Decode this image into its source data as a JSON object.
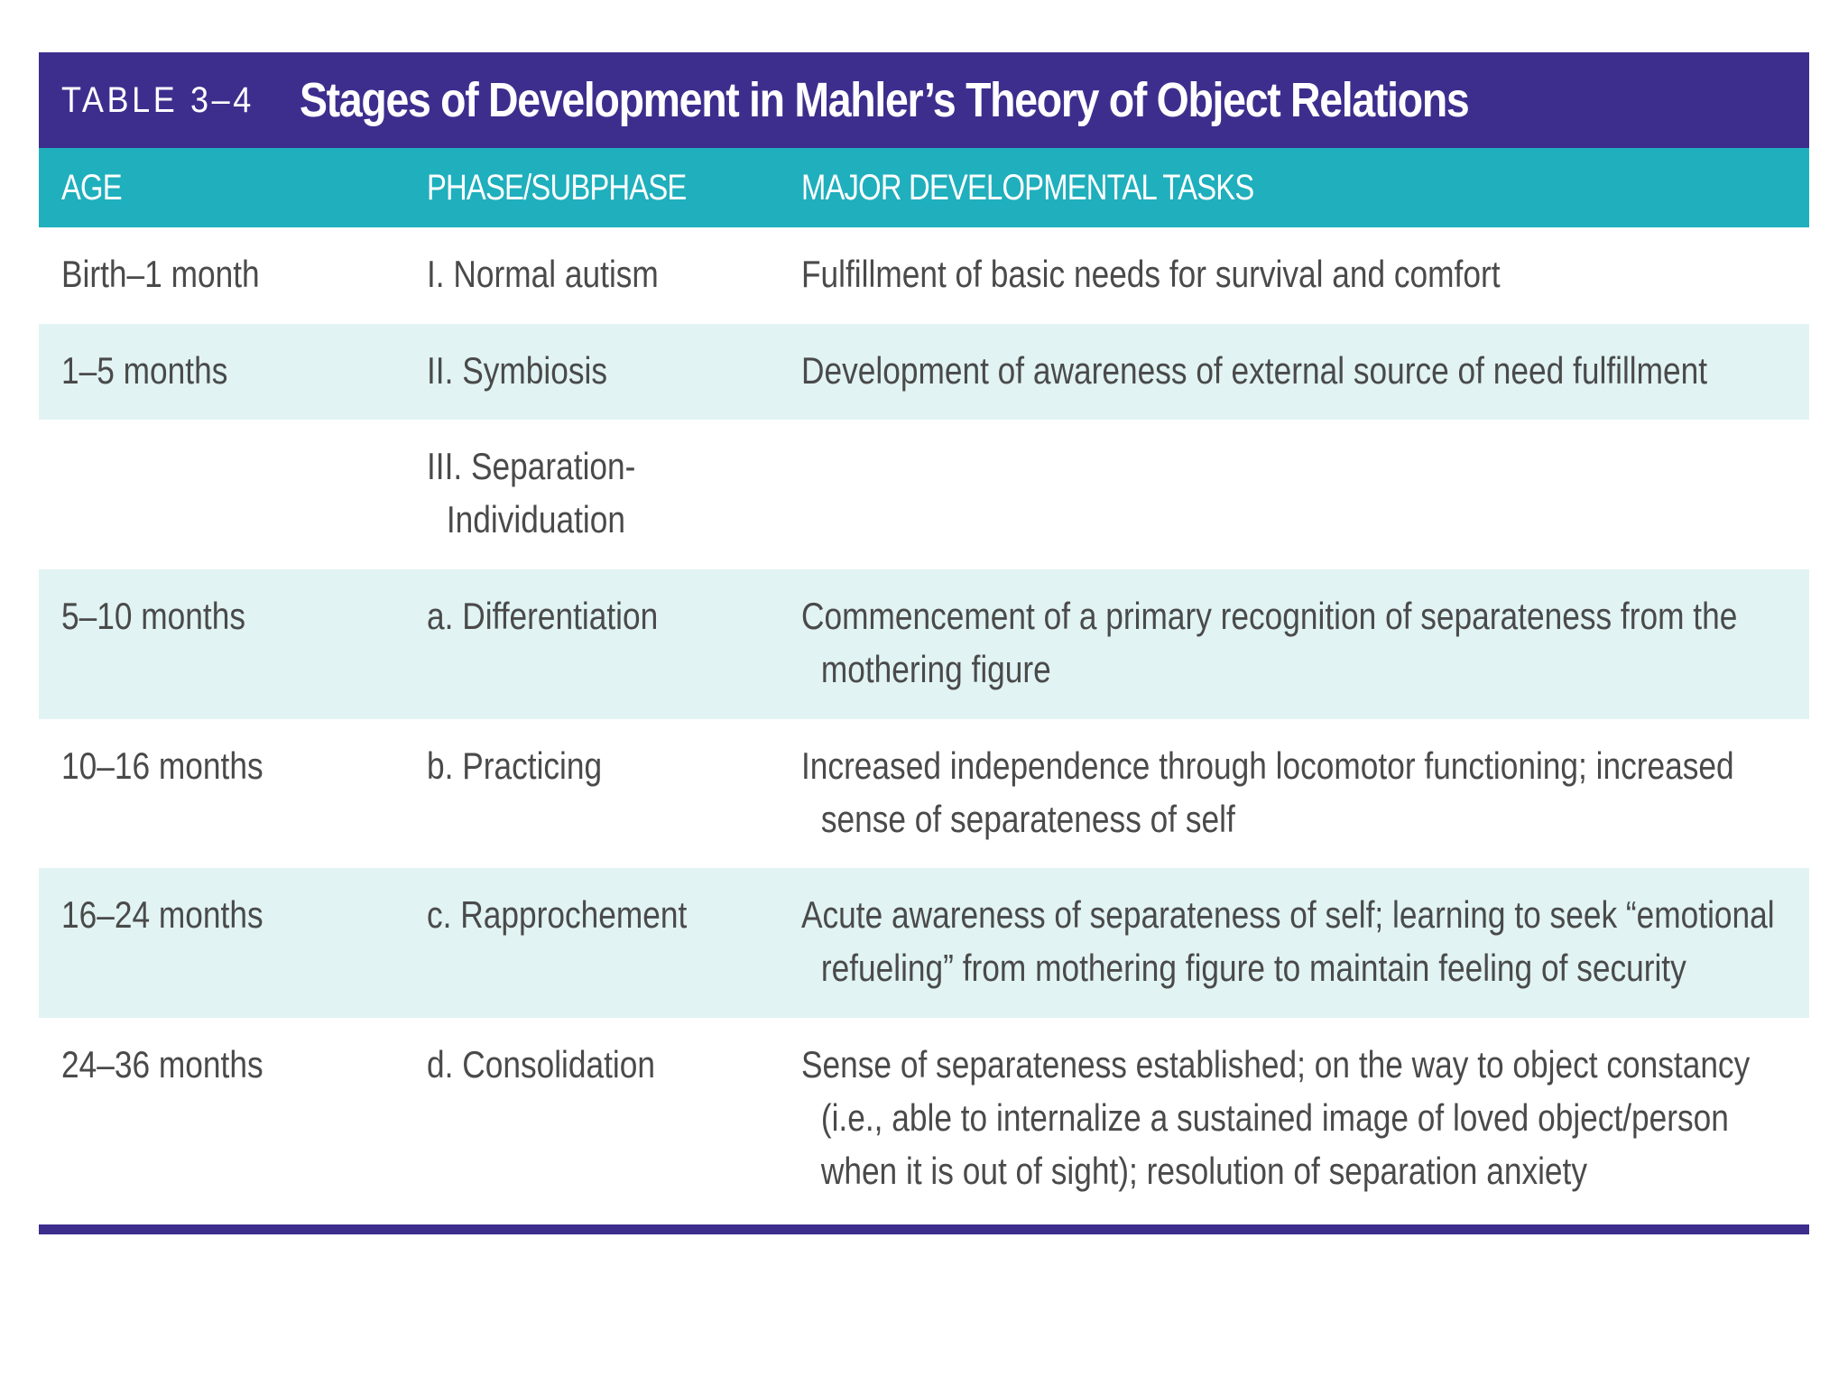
{
  "table": {
    "label": "TABLE 3–4",
    "title": "Stages of Development in Mahler’s Theory of Object Relations",
    "colors": {
      "title_bar": "#3d2e8e",
      "header_bar": "#1fafbd",
      "shaded_row": "#e1f3f3",
      "text": "#4a4a4a"
    },
    "headers": {
      "age": "AGE",
      "phase": "PHASE/SUBPHASE",
      "tasks": "MAJOR DEVELOPMENTAL TASKS"
    },
    "rows": [
      {
        "age": "Birth–1 month",
        "phase": [
          "I. Normal autism"
        ],
        "tasks": [
          "Fulfillment of basic needs for survival and comfort"
        ]
      },
      {
        "age": "1–5 months",
        "phase": [
          "II. Symbiosis"
        ],
        "tasks": [
          "Development of awareness of external source of need fulfillment"
        ]
      },
      {
        "age": "",
        "phase": [
          "III. Separation-",
          "Individuation"
        ],
        "tasks": []
      },
      {
        "age": "5–10 months",
        "phase": [
          "a. Differentiation"
        ],
        "tasks": [
          "Commencement of a primary recognition of separateness from the",
          "mothering figure"
        ]
      },
      {
        "age": "10–16 months",
        "phase": [
          "b. Practicing"
        ],
        "tasks": [
          "Increased independence through locomotor functioning; increased",
          "sense of separateness of self"
        ]
      },
      {
        "age": "16–24 months",
        "phase": [
          "c. Rapprochement"
        ],
        "tasks": [
          "Acute awareness of separateness of self; learning to seek “emotional",
          "refueling” from mothering figure to maintain feeling of security"
        ]
      },
      {
        "age": "24–36 months",
        "phase": [
          "d. Consolidation"
        ],
        "tasks": [
          "Sense of separateness established; on the way to object constancy",
          "(i.e., able to internalize a sustained image of loved object/person",
          "when it is out of sight); resolution of separation anxiety"
        ]
      }
    ]
  }
}
